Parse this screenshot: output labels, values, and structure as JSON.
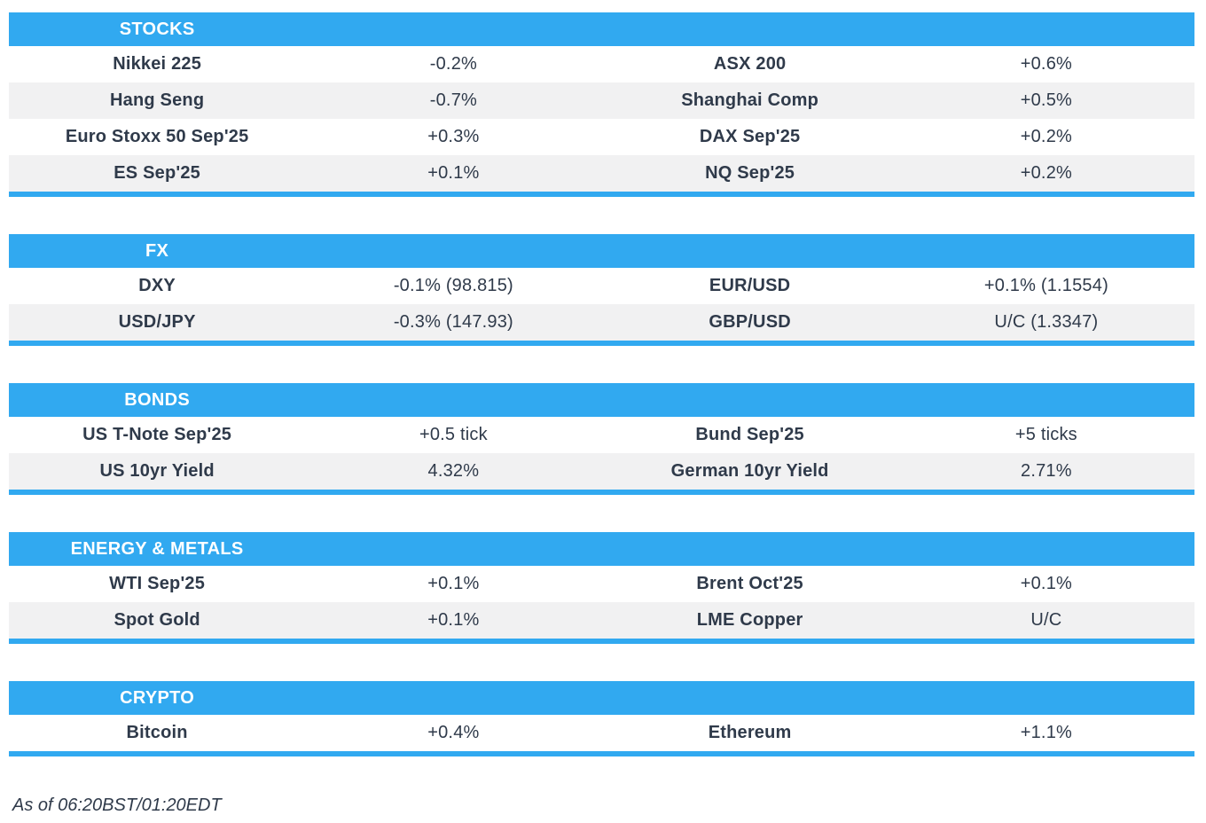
{
  "colors": {
    "accent": "#31a9f0",
    "stripe": "#f1f1f2",
    "text": "#2f3a4a",
    "header_text": "#ffffff"
  },
  "footer": {
    "as_of": "As of 06:20BST/01:20EDT"
  },
  "sections": [
    {
      "title": "STOCKS",
      "rows": [
        {
          "left_label": "Nikkei 225",
          "left_value": "-0.2%",
          "right_label": "ASX 200",
          "right_value": "+0.6%"
        },
        {
          "left_label": "Hang Seng",
          "left_value": "-0.7%",
          "right_label": "Shanghai Comp",
          "right_value": "+0.5%"
        },
        {
          "left_label": "Euro Stoxx 50 Sep'25",
          "left_value": "+0.3%",
          "right_label": "DAX Sep'25",
          "right_value": "+0.2%"
        },
        {
          "left_label": "ES Sep'25",
          "left_value": "+0.1%",
          "right_label": "NQ Sep'25",
          "right_value": "+0.2%"
        }
      ]
    },
    {
      "title": "FX",
      "rows": [
        {
          "left_label": "DXY",
          "left_value": "-0.1% (98.815)",
          "right_label": "EUR/USD",
          "right_value": "+0.1% (1.1554)"
        },
        {
          "left_label": "USD/JPY",
          "left_value": "-0.3% (147.93)",
          "right_label": "GBP/USD",
          "right_value": "U/C (1.3347)"
        }
      ]
    },
    {
      "title": "BONDS",
      "rows": [
        {
          "left_label": "US T-Note Sep'25",
          "left_value": "+0.5 tick",
          "right_label": "Bund Sep'25",
          "right_value": "+5 ticks"
        },
        {
          "left_label": "US 10yr Yield",
          "left_value": "4.32%",
          "right_label": "German 10yr Yield",
          "right_value": "2.71%"
        }
      ]
    },
    {
      "title": "ENERGY & METALS",
      "rows": [
        {
          "left_label": "WTI Sep'25",
          "left_value": "+0.1%",
          "right_label": "Brent Oct'25",
          "right_value": "+0.1%"
        },
        {
          "left_label": "Spot Gold",
          "left_value": "+0.1%",
          "right_label": "LME Copper",
          "right_value": "U/C"
        }
      ]
    },
    {
      "title": "CRYPTO",
      "rows": [
        {
          "left_label": "Bitcoin",
          "left_value": "+0.4%",
          "right_label": "Ethereum",
          "right_value": "+1.1%"
        }
      ]
    }
  ]
}
